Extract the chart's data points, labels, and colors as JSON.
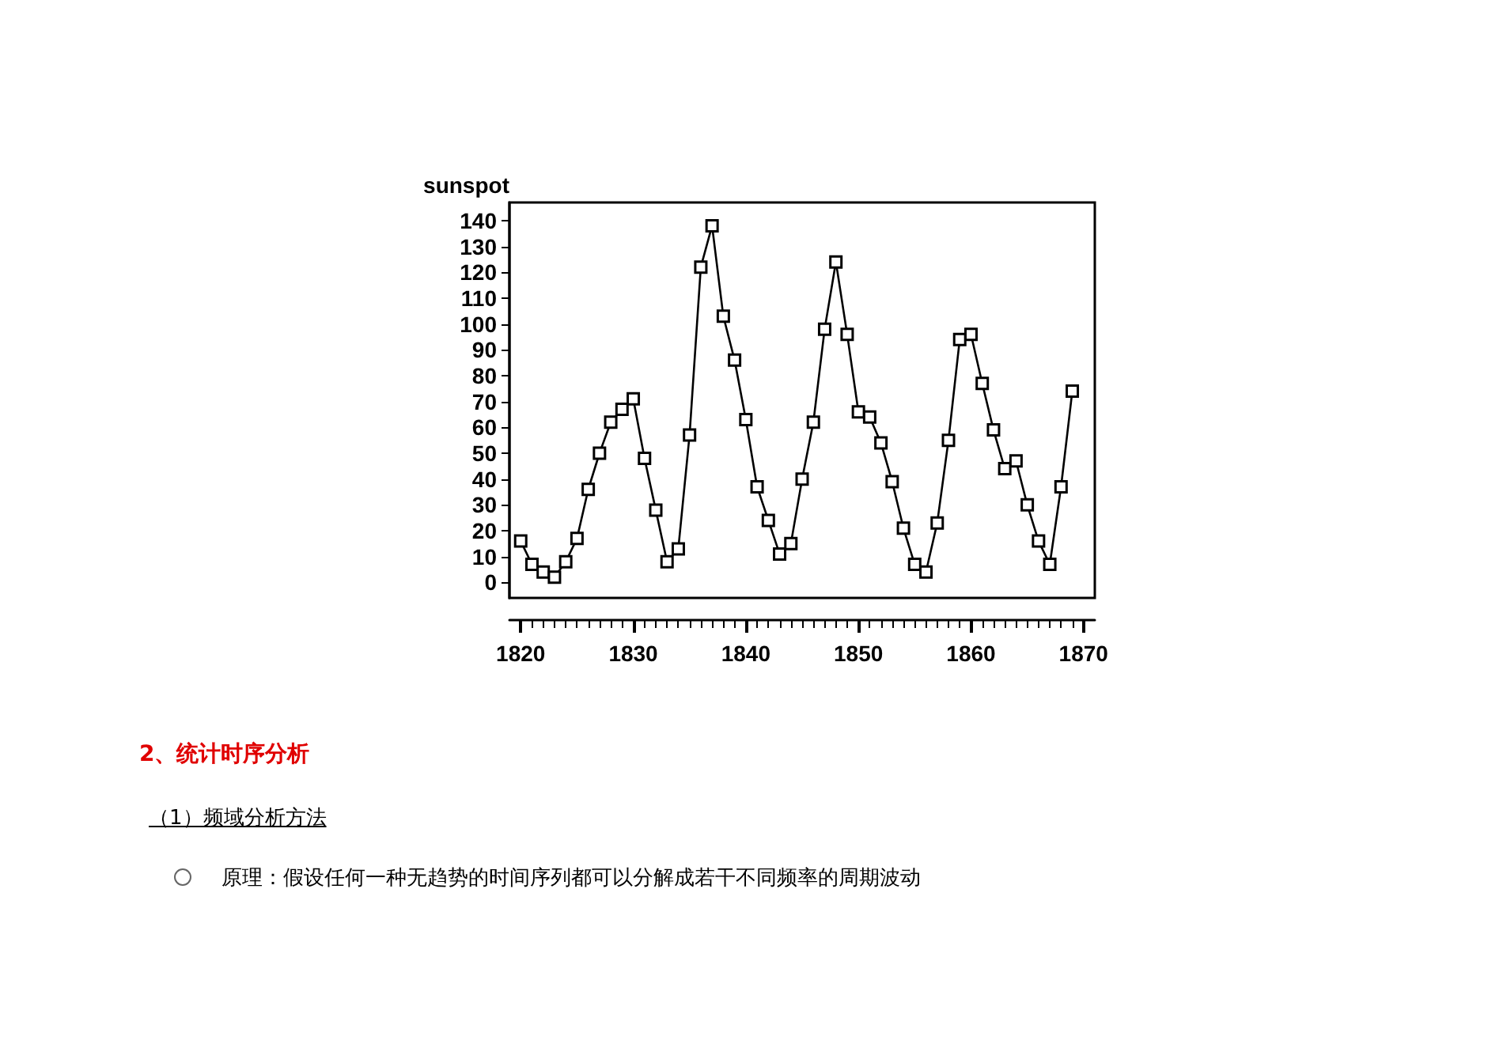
{
  "chart_data": {
    "type": "line",
    "ylabel": "sunspot",
    "x": [
      1820,
      1821,
      1822,
      1823,
      1824,
      1825,
      1826,
      1827,
      1828,
      1829,
      1830,
      1831,
      1832,
      1833,
      1834,
      1835,
      1836,
      1837,
      1838,
      1839,
      1840,
      1841,
      1842,
      1843,
      1844,
      1845,
      1846,
      1847,
      1848,
      1849,
      1850,
      1851,
      1852,
      1853,
      1854,
      1855,
      1856,
      1857,
      1858,
      1859,
      1860,
      1861,
      1862,
      1863,
      1864,
      1865,
      1866,
      1867,
      1868,
      1869
    ],
    "series": [
      {
        "color": "#000000",
        "values": [
          16,
          7,
          4,
          2,
          8,
          17,
          36,
          50,
          62,
          67,
          71,
          48,
          28,
          8,
          13,
          57,
          122,
          138,
          103,
          86,
          63,
          37,
          24,
          11,
          15,
          40,
          62,
          98,
          124,
          96,
          66,
          64,
          54,
          39,
          21,
          7,
          4,
          23,
          55,
          94,
          96,
          77,
          59,
          44,
          47,
          30,
          16,
          7,
          37,
          74
        ]
      }
    ],
    "marker": "square",
    "line_style": "solid",
    "grid": false,
    "xlim": [
      1819,
      1871
    ],
    "xticks": [
      1820,
      1830,
      1840,
      1850,
      1860,
      1870
    ],
    "ylim": [
      -6,
      147
    ],
    "yticks": [
      0,
      10,
      20,
      30,
      40,
      50,
      60,
      70,
      80,
      90,
      100,
      110,
      120,
      130,
      140
    ],
    "annotations": [
      "2、统计时序分析",
      "（1）频域分析方法",
      "原理：假设任何一种无趋势的时间序列都可以分解成若干不同频率的周期波动"
    ]
  }
}
